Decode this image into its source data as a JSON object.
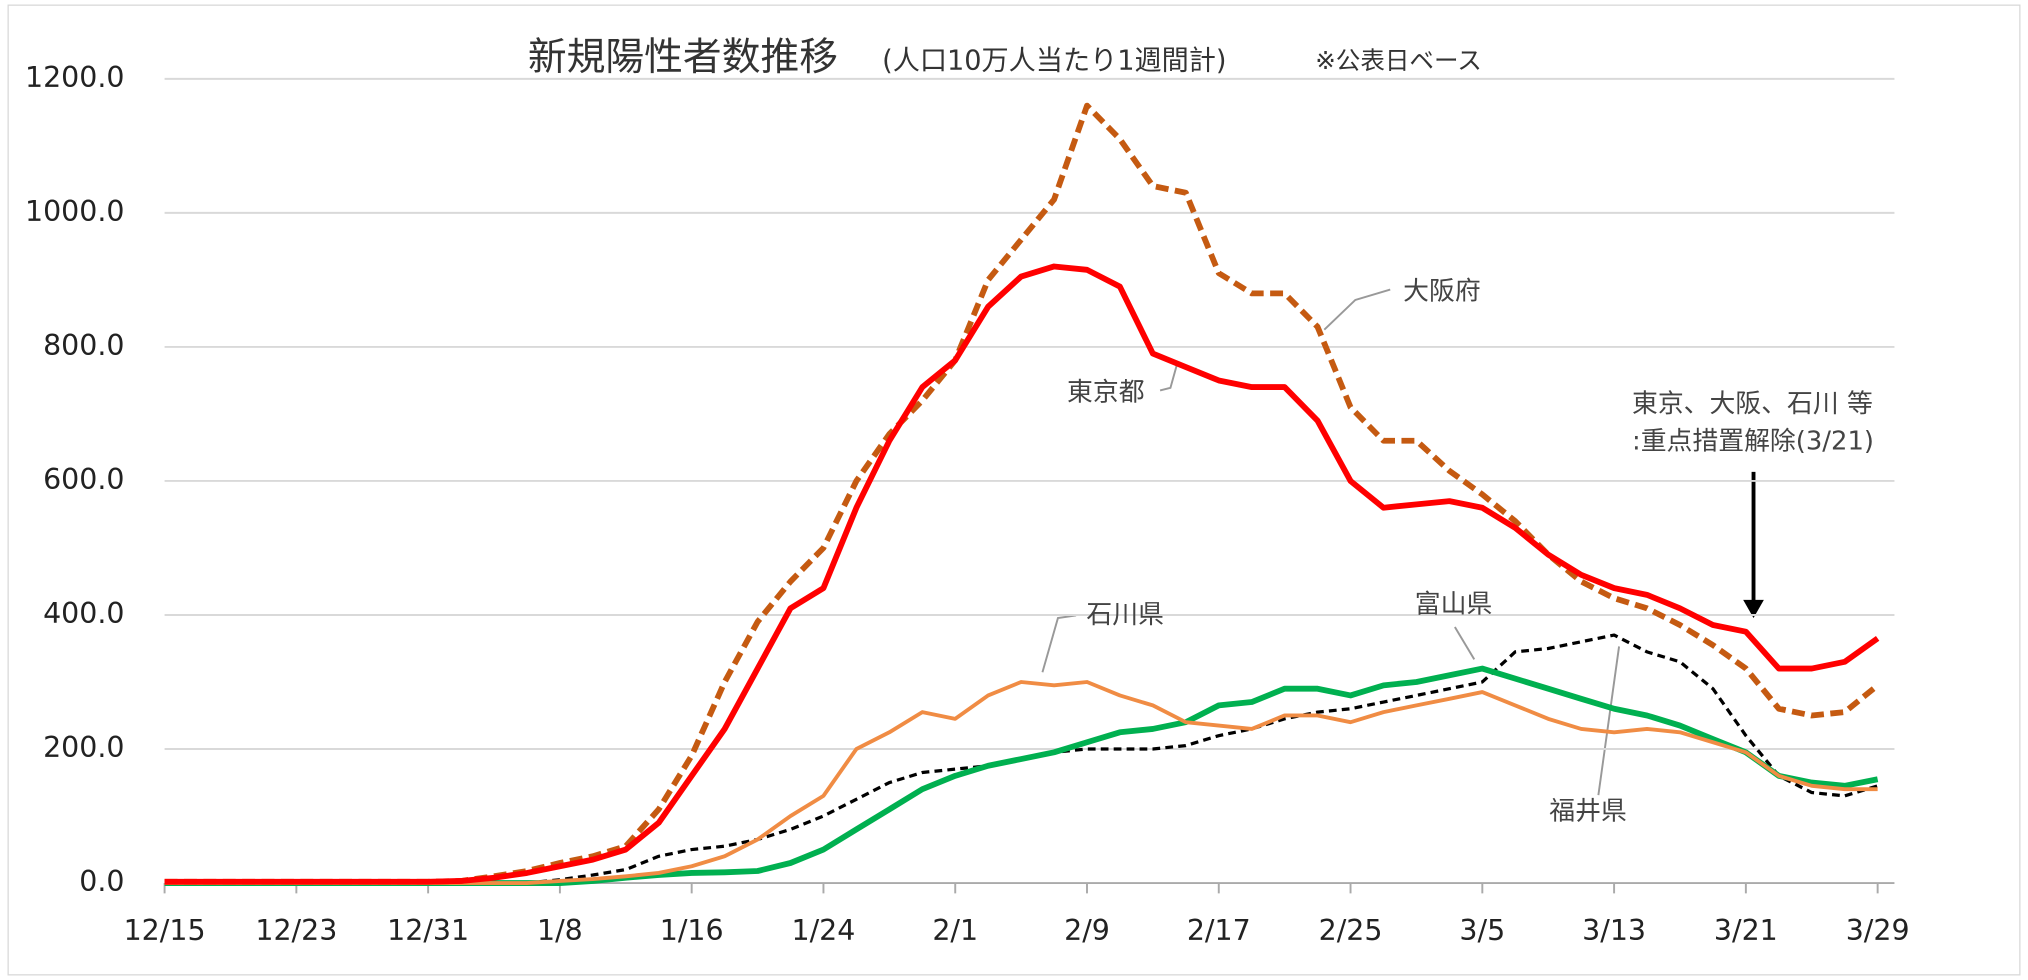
{
  "chart_data": {
    "type": "line",
    "title": "新規陽性者数推移",
    "subtitle": "(人口10万人当たり1週間計)",
    "note": "※公表日ベース",
    "annotations": [
      "東京、大阪、石川 等",
      ":重点措置解除(3/21)"
    ],
    "categories": [
      "12/15",
      null,
      null,
      null,
      "12/23",
      null,
      null,
      null,
      "12/31",
      null,
      null,
      null,
      "1/8",
      null,
      null,
      null,
      "1/16",
      null,
      null,
      null,
      "1/24",
      null,
      null,
      null,
      "2/1",
      null,
      null,
      null,
      "2/9",
      null,
      null,
      null,
      "2/17",
      null,
      null,
      null,
      "2/25",
      null,
      null,
      null,
      "3/5",
      null,
      null,
      null,
      "3/13",
      null,
      null,
      null,
      "3/21",
      null,
      null,
      null,
      "3/29"
    ],
    "ylim": [
      0,
      1200
    ],
    "yticks": [
      {
        "value": 0,
        "label": "0.0"
      },
      {
        "value": 200,
        "label": "200.0"
      },
      {
        "value": 400,
        "label": "400.0"
      },
      {
        "value": 600,
        "label": "600.0"
      },
      {
        "value": 800,
        "label": "800.0"
      },
      {
        "value": 1000,
        "label": "1000.0"
      },
      {
        "value": 1200,
        "label": "1200.0"
      }
    ],
    "grid": true,
    "series": [
      {
        "name": "東京都",
        "color": "#ff0000",
        "dashed": false,
        "values": [
          2,
          2,
          2,
          2,
          2,
          2,
          2,
          2,
          2,
          3,
          8,
          15,
          25,
          35,
          50,
          90,
          160,
          230,
          320,
          410,
          440,
          560,
          660,
          740,
          780,
          860,
          905,
          920,
          915,
          890,
          790,
          770,
          750,
          740,
          740,
          690,
          600,
          560,
          565,
          570,
          560,
          530,
          490,
          460,
          440,
          430,
          410,
          385,
          375,
          320,
          320,
          330,
          365
        ]
      },
      {
        "name": "大阪府",
        "color": "#c55a11",
        "dashed": true,
        "values": [
          2,
          2,
          2,
          2,
          2,
          2,
          2,
          2,
          2,
          3,
          10,
          18,
          30,
          40,
          55,
          110,
          190,
          300,
          390,
          450,
          500,
          600,
          670,
          720,
          780,
          900,
          960,
          1020,
          1160,
          1110,
          1040,
          1030,
          910,
          880,
          880,
          830,
          710,
          660,
          660,
          615,
          580,
          540,
          490,
          450,
          425,
          410,
          385,
          355,
          320,
          260,
          250,
          255,
          295
        ]
      },
      {
        "name": "石川県",
        "color": "#f08c44",
        "dashed": false,
        "values": [
          0,
          0,
          0,
          0,
          0,
          0,
          0,
          0,
          0,
          0,
          0,
          0,
          3,
          6,
          10,
          15,
          25,
          40,
          65,
          100,
          130,
          200,
          225,
          255,
          245,
          280,
          300,
          295,
          300,
          280,
          265,
          240,
          235,
          230,
          250,
          250,
          240,
          255,
          265,
          275,
          285,
          265,
          245,
          230,
          225,
          230,
          225,
          210,
          195,
          160,
          145,
          140,
          140
        ]
      },
      {
        "name": "富山県",
        "color": "#00b050",
        "dashed": false,
        "values": [
          0,
          0,
          0,
          0,
          0,
          0,
          0,
          0,
          0,
          0,
          0,
          0,
          0,
          3,
          8,
          12,
          15,
          16,
          18,
          30,
          50,
          80,
          110,
          140,
          160,
          175,
          185,
          195,
          210,
          225,
          230,
          240,
          265,
          270,
          290,
          290,
          280,
          295,
          300,
          310,
          320,
          305,
          290,
          275,
          260,
          250,
          235,
          215,
          195,
          160,
          150,
          145,
          155
        ]
      },
      {
        "name": "福井県",
        "color": "#000000",
        "dashed": true,
        "values": [
          0,
          0,
          0,
          0,
          0,
          0,
          0,
          0,
          0,
          0,
          0,
          0,
          5,
          12,
          20,
          40,
          50,
          55,
          65,
          80,
          100,
          125,
          150,
          165,
          170,
          175,
          185,
          195,
          200,
          200,
          200,
          205,
          220,
          230,
          245,
          255,
          260,
          270,
          280,
          290,
          300,
          345,
          350,
          360,
          370,
          345,
          330,
          290,
          220,
          160,
          135,
          130,
          145
        ]
      }
    ]
  }
}
